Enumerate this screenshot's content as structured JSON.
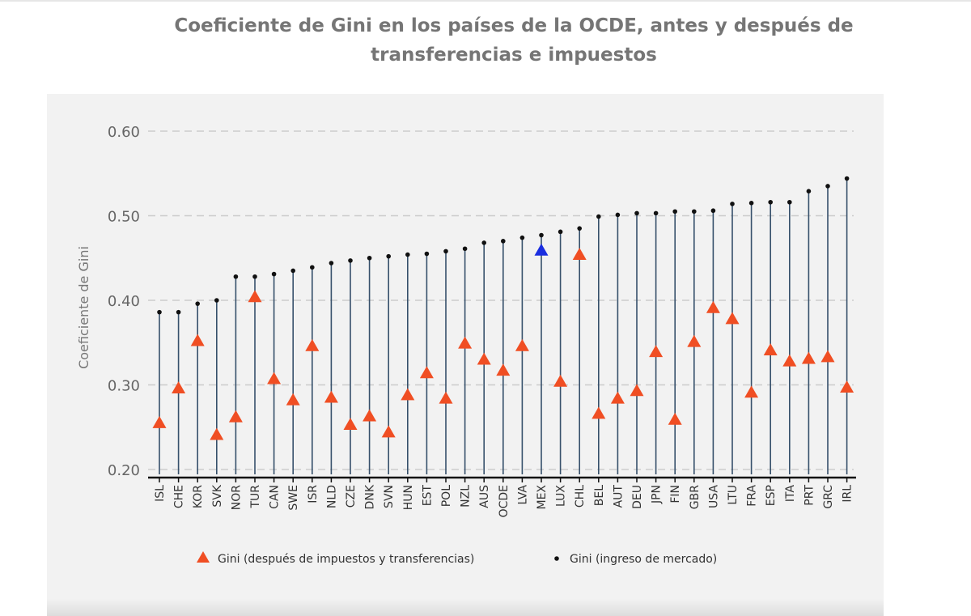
{
  "chart_data": {
    "type": "scatter",
    "title": "Coeficiente de Gini en los países de la OCDE, antes y después de transferencias e impuestos",
    "ylabel": "Coeficiente de Gini",
    "xlabel": "",
    "ylim": [
      0.2,
      0.6
    ],
    "yticks": [
      "0.60",
      "0.50",
      "0.40",
      "0.30",
      "0.20"
    ],
    "ytick_values": [
      0.6,
      0.5,
      0.4,
      0.3,
      0.2
    ],
    "grid": true,
    "legend_position": "bottom",
    "categories": [
      "ISL",
      "CHE",
      "KOR",
      "SVK",
      "NOR",
      "TUR",
      "CAN",
      "SWE",
      "ISR",
      "NLD",
      "CZE",
      "DNK",
      "SVN",
      "HUN",
      "EST",
      "POL",
      "NZL",
      "AUS",
      "OCDE",
      "LVA",
      "MEX",
      "LUX",
      "CHL",
      "BEL",
      "AUT",
      "DEU",
      "JPN",
      "FIN",
      "GBR",
      "USA",
      "LTU",
      "FRA",
      "ESP",
      "ITA",
      "PRT",
      "GRC",
      "IRL"
    ],
    "highlight_category": "MEX",
    "series": [
      {
        "name": "Gini (después de impuestos y transferencias)",
        "marker": "triangle",
        "color": "#f04e23",
        "highlight_color": "#1a2ee0",
        "values": [
          0.255,
          0.296,
          0.352,
          0.241,
          0.262,
          0.404,
          0.307,
          0.282,
          0.346,
          0.285,
          0.253,
          0.263,
          0.244,
          0.288,
          0.314,
          0.284,
          0.349,
          0.33,
          0.317,
          0.346,
          0.459,
          0.304,
          0.454,
          0.266,
          0.284,
          0.293,
          0.339,
          0.259,
          0.351,
          0.391,
          0.378,
          0.291,
          0.341,
          0.328,
          0.331,
          0.333,
          0.297
        ]
      },
      {
        "name": "Gini (ingreso de mercado)",
        "marker": "dot",
        "color": "#111111",
        "values": [
          0.386,
          0.386,
          0.396,
          0.4,
          0.428,
          0.428,
          0.431,
          0.435,
          0.439,
          0.444,
          0.447,
          0.45,
          0.452,
          0.454,
          0.455,
          0.458,
          0.461,
          0.468,
          0.47,
          0.474,
          0.477,
          0.481,
          0.485,
          0.499,
          0.501,
          0.503,
          0.503,
          0.505,
          0.505,
          0.506,
          0.514,
          0.515,
          0.516,
          0.516,
          0.529,
          0.535,
          0.544
        ]
      }
    ],
    "colors": {
      "stem": "#36506b",
      "grid": "#cccccc",
      "axis": "#111111",
      "panel": "#f2f2f2"
    }
  }
}
